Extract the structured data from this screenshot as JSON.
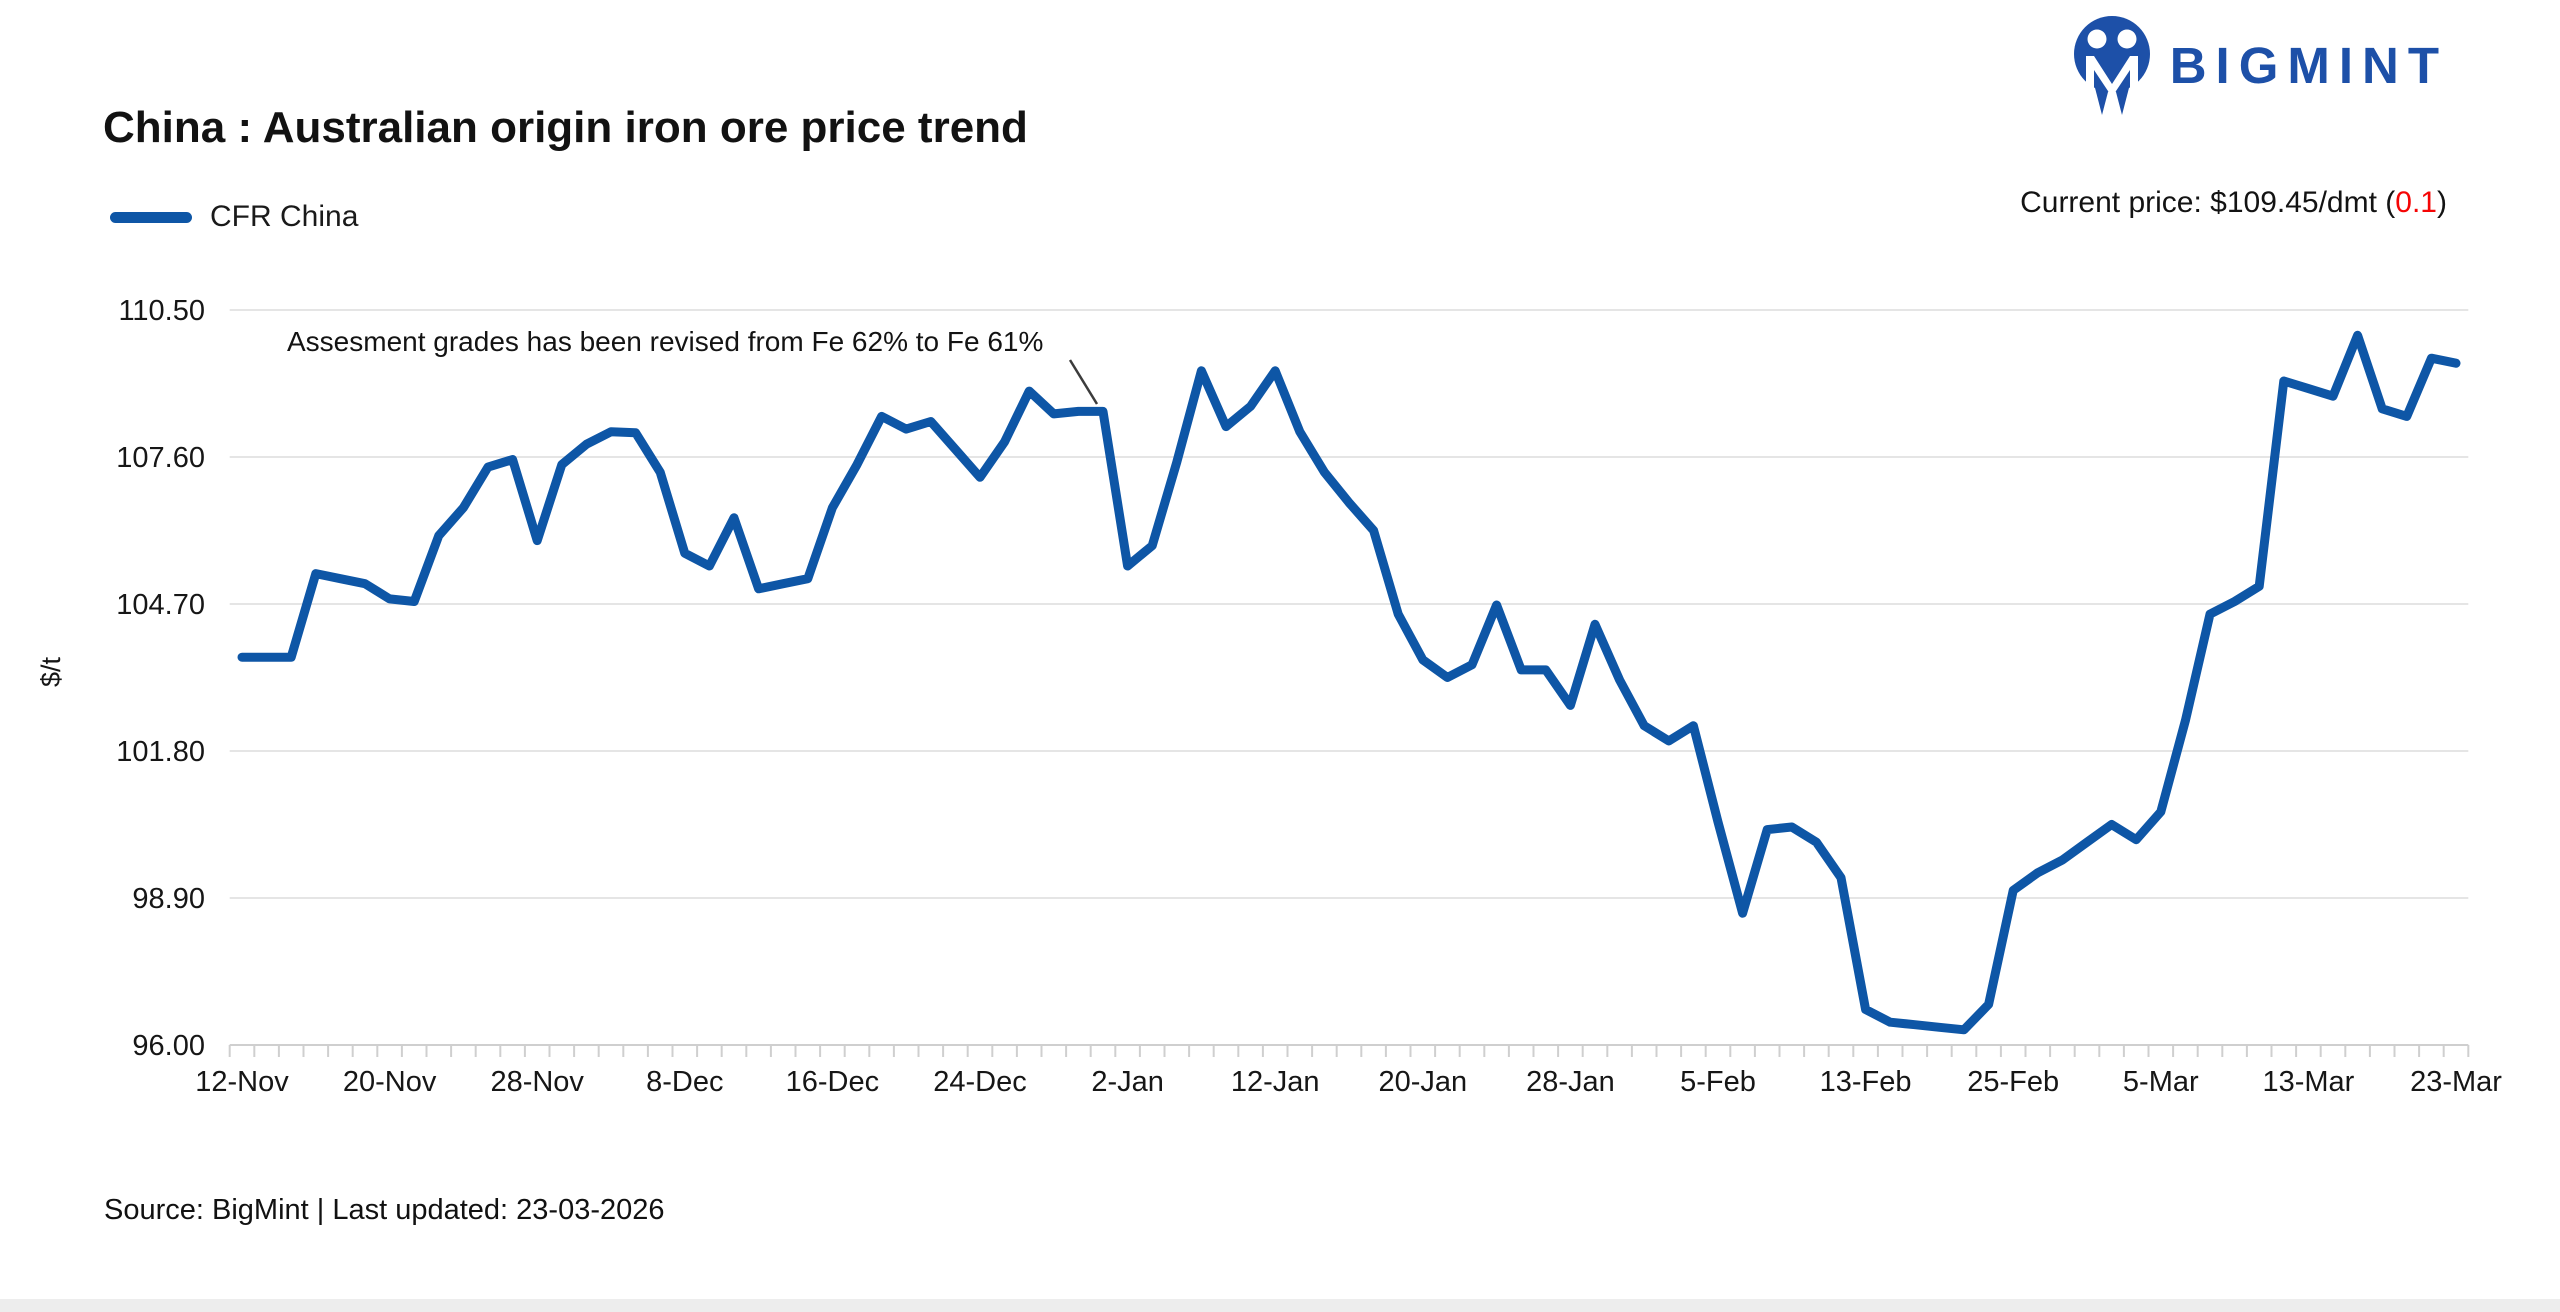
{
  "header": {
    "logo_text": "BIGMINT",
    "title": "China : Australian origin iron ore price trend",
    "current_price_prefix": "Current price: $109.45/dmt (",
    "current_price_change": "0.1",
    "current_price_suffix": ")"
  },
  "legend": {
    "series_label": "CFR China"
  },
  "annotation": {
    "text": "Assesment grades has been revised from Fe 62% to Fe 61%"
  },
  "footer": {
    "source_text": "Source: BigMint | Last updated: 23-03-2026"
  },
  "colors": {
    "line": "#0e56a6",
    "brand": "#1d50a8",
    "negative": "#f50505",
    "grid": "#e5e5e5",
    "axis": "#cfcfcf",
    "text": "#161616"
  },
  "chart_data": {
    "type": "line",
    "title": "China : Australian origin iron ore price trend",
    "ylabel": "$/t",
    "xlabel": "",
    "grid": "horizontal",
    "legend_position": "top-left",
    "ylim": [
      96.0,
      110.5
    ],
    "y_ticks": [
      110.5,
      107.6,
      104.7,
      101.8,
      98.9,
      96.0
    ],
    "y_tick_labels": [
      "110.50",
      "107.60",
      "104.70",
      "101.80",
      "98.90",
      "96.00"
    ],
    "x_tick_labels": [
      "12-Nov",
      "20-Nov",
      "28-Nov",
      "8-Dec",
      "16-Dec",
      "24-Dec",
      "2-Jan",
      "12-Jan",
      "20-Jan",
      "28-Jan",
      "5-Feb",
      "13-Feb",
      "25-Feb",
      "5-Mar",
      "13-Mar",
      "23-Mar"
    ],
    "points_per_tick": 6,
    "annotation": "Assesment grades has been revised from Fe 62% to Fe 61%",
    "current_price": 109.45,
    "current_price_change": -0.1,
    "series": [
      {
        "name": "CFR China",
        "values": [
          103.65,
          103.65,
          103.65,
          105.3,
          105.2,
          105.1,
          104.8,
          104.75,
          106.05,
          106.6,
          107.4,
          107.55,
          105.95,
          107.45,
          107.85,
          108.1,
          108.08,
          107.3,
          105.7,
          105.45,
          106.4,
          105.0,
          105.1,
          105.2,
          106.6,
          107.45,
          108.4,
          108.15,
          108.3,
          107.75,
          107.2,
          107.9,
          108.9,
          108.45,
          108.5,
          108.5,
          105.45,
          105.85,
          107.5,
          109.3,
          108.2,
          108.6,
          109.3,
          108.1,
          107.3,
          106.7,
          106.15,
          104.5,
          103.6,
          103.25,
          103.5,
          104.68,
          103.4,
          103.4,
          102.7,
          104.3,
          103.2,
          102.3,
          102.0,
          102.3,
          100.4,
          98.6,
          100.25,
          100.3,
          100.0,
          99.3,
          96.7,
          96.45,
          96.4,
          96.35,
          96.3,
          96.8,
          99.05,
          99.4,
          99.65,
          100.0,
          100.35,
          100.05,
          100.6,
          102.4,
          104.5,
          104.75,
          105.05,
          109.1,
          108.95,
          108.8,
          110.0,
          108.55,
          108.4,
          109.55,
          109.45
        ]
      }
    ]
  }
}
